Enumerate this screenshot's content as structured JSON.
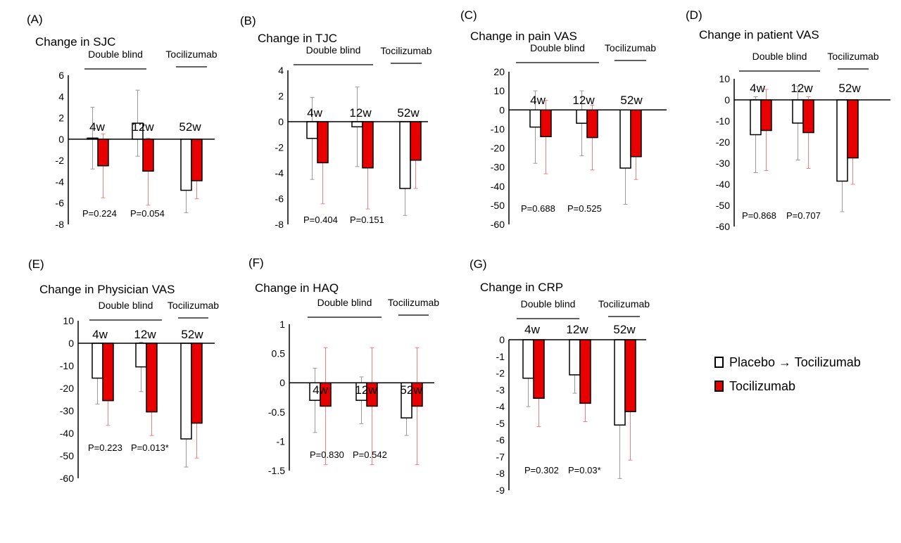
{
  "legend": {
    "placebo": "Placebo → Tocilizumab",
    "tocilizumab": "Tocilizumab"
  },
  "colors": {
    "placebo_fill": "#ffffff",
    "tocilizumab_fill": "#e80000",
    "placebo_error": "#9a9a9a",
    "tocilizumab_error": "#f08080"
  },
  "chart_data": [
    {
      "panel": "(A)",
      "title": "Change in SJC",
      "type": "bar",
      "group_labels": [
        "Double blind",
        "Tocilizumab"
      ],
      "categories": [
        "4w",
        "12w",
        "52w"
      ],
      "ylim": [
        -8,
        6
      ],
      "yticks": [
        6,
        4,
        2,
        0,
        -2,
        -4,
        -6,
        -8
      ],
      "series": [
        {
          "name": "Placebo → Tocilizumab",
          "values": [
            0.1,
            1.5,
            -4.8
          ],
          "err_low": [
            -2.8,
            -1.6,
            -6.9
          ],
          "err_high": [
            3.0,
            4.6,
            -2.6
          ]
        },
        {
          "name": "Tocilizumab",
          "values": [
            -2.5,
            -3.0,
            -3.9
          ],
          "err_low": [
            -5.5,
            -6.2,
            -5.6
          ],
          "err_high": [
            0.5,
            0.1,
            -2.2
          ]
        }
      ],
      "pvalues": [
        "P=0.224",
        "P=0.054"
      ]
    },
    {
      "panel": "(B)",
      "title": "Change in TJC",
      "type": "bar",
      "group_labels": [
        "Double blind",
        "Tocilizumab"
      ],
      "categories": [
        "4w",
        "12w",
        "52w"
      ],
      "ylim": [
        -8,
        4
      ],
      "yticks": [
        4,
        2,
        0,
        -2,
        -4,
        -6,
        -8
      ],
      "series": [
        {
          "name": "Placebo → Tocilizumab",
          "values": [
            -1.3,
            -0.4,
            -5.2
          ],
          "err_low": [
            -4.5,
            -3.5,
            -7.3
          ],
          "err_high": [
            1.9,
            2.7,
            -3.1
          ]
        },
        {
          "name": "Tocilizumab",
          "values": [
            -3.2,
            -3.6,
            -3.0
          ],
          "err_low": [
            -6.4,
            -6.8,
            -5.2
          ],
          "err_high": [
            0.0,
            -0.4,
            -0.8
          ]
        }
      ],
      "pvalues": [
        "P=0.404",
        "P=0.151"
      ]
    },
    {
      "panel": "(C)",
      "title": "Change in pain VAS",
      "type": "bar",
      "group_labels": [
        "Double blind",
        "Tocilizumab"
      ],
      "categories": [
        "4w",
        "12w",
        "52w"
      ],
      "ylim": [
        -60,
        20
      ],
      "yticks": [
        20,
        10,
        0,
        -10,
        -20,
        -30,
        -40,
        -50,
        -60
      ],
      "series": [
        {
          "name": "Placebo → Tocilizumab",
          "values": [
            -9,
            -7,
            -30.5
          ],
          "err_low": [
            -28,
            -24,
            -49.5
          ],
          "err_high": [
            10,
            10,
            -11.5
          ]
        },
        {
          "name": "Tocilizumab",
          "values": [
            -14,
            -14.5,
            -24.5
          ],
          "err_low": [
            -33.5,
            -31.5,
            -36.5
          ],
          "err_high": [
            5,
            2.5,
            -12.5
          ]
        }
      ],
      "pvalues": [
        "P=0.688",
        "P=0.525"
      ]
    },
    {
      "panel": "(D)",
      "title": "Change in patient VAS",
      "type": "bar",
      "group_labels": [
        "Double blind",
        "Tocilizumab"
      ],
      "categories": [
        "4w",
        "12w",
        "52w"
      ],
      "ylim": [
        -60,
        10
      ],
      "yticks": [
        10,
        0,
        -10,
        -20,
        -30,
        -40,
        -50,
        -60
      ],
      "series": [
        {
          "name": "Placebo → Tocilizumab",
          "values": [
            -16.5,
            -11,
            -38.5
          ],
          "err_low": [
            -34.5,
            -28.5,
            -53
          ],
          "err_high": [
            1.5,
            6.5,
            -19.5
          ]
        },
        {
          "name": "Tocilizumab",
          "values": [
            -14.5,
            -15.5,
            -27.5
          ],
          "err_low": [
            -33.5,
            -32.5,
            -40
          ],
          "err_high": [
            5,
            1.5,
            -15
          ]
        }
      ],
      "pvalues": [
        "P=0.868",
        "P=0.707"
      ]
    },
    {
      "panel": "(E)",
      "title": "Change in Physician VAS",
      "type": "bar",
      "group_labels": [
        "Double blind",
        "Tocilizumab"
      ],
      "categories": [
        "4w",
        "12w",
        "52w"
      ],
      "ylim": [
        -60,
        10
      ],
      "yticks": [
        10,
        0,
        -10,
        -20,
        -30,
        -40,
        -50,
        -60
      ],
      "series": [
        {
          "name": "Placebo → Tocilizumab",
          "values": [
            -15.5,
            -10.5,
            -42.5
          ],
          "err_low": [
            -27,
            -21.5,
            -55
          ],
          "err_high": [
            -3.5,
            0.5,
            -30
          ]
        },
        {
          "name": "Tocilizumab",
          "values": [
            -25.5,
            -30.5,
            -35.5
          ],
          "err_low": [
            -36.5,
            -41,
            -51
          ],
          "err_high": [
            -14.5,
            -20,
            -20
          ]
        }
      ],
      "pvalues": [
        "P=0.223",
        "P=0.013*"
      ]
    },
    {
      "panel": "(F)",
      "title": "Change in HAQ",
      "type": "bar",
      "group_labels": [
        "Double blind",
        "Tocilizumab"
      ],
      "categories": [
        "4w",
        "12w",
        "52w"
      ],
      "ylim": [
        -1.5,
        1
      ],
      "yticks": [
        1,
        0.5,
        0,
        -0.5,
        -1,
        -1.5
      ],
      "series": [
        {
          "name": "Placebo → Tocilizumab",
          "values": [
            -0.3,
            -0.3,
            -0.6
          ],
          "err_low": [
            -0.85,
            -0.7,
            -0.9
          ],
          "err_high": [
            0.25,
            0.1,
            -0.3
          ]
        },
        {
          "name": "Tocilizumab",
          "values": [
            -0.4,
            -0.4,
            -0.4
          ],
          "err_low": [
            -1.4,
            -1.4,
            -1.4
          ],
          "err_high": [
            0.6,
            0.6,
            0.6
          ]
        }
      ],
      "pvalues": [
        "P=0.830",
        "P=0.542"
      ]
    },
    {
      "panel": "(G)",
      "title": "Change in CRP",
      "type": "bar",
      "group_labels": [
        "Double blind",
        "Tocilizumab"
      ],
      "categories": [
        "4w",
        "12w",
        "52w"
      ],
      "ylim": [
        -9,
        0
      ],
      "yticks": [
        0,
        -1,
        -2,
        -3,
        -4,
        -5,
        -6,
        -7,
        -8,
        -9
      ],
      "series": [
        {
          "name": "Placebo → Tocilizumab",
          "values": [
            -2.3,
            -2.1,
            -5.1
          ],
          "err_low": [
            -4.0,
            -3.2,
            -8.3
          ],
          "err_high": [
            -0.6,
            -1.0,
            -1.9
          ]
        },
        {
          "name": "Tocilizumab",
          "values": [
            -3.5,
            -3.8,
            -4.3
          ],
          "err_low": [
            -5.2,
            -4.9,
            -7.2
          ],
          "err_high": [
            -1.8,
            -2.7,
            -1.4
          ]
        }
      ],
      "pvalues": [
        "P=0.302",
        "P=0.03*"
      ]
    }
  ]
}
